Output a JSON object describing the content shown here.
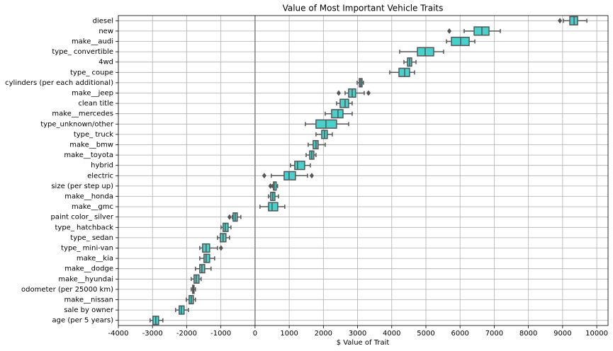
{
  "chart_data": {
    "type": "boxplot",
    "orientation": "horizontal",
    "title": "Value of Most Important Vehicle Traits",
    "x_label": "$ Value of Trait",
    "color": "#48d1cc",
    "edge_color": "#555555",
    "grid": true,
    "zero_line": true,
    "xlim": [
      -4000,
      10330
    ],
    "xticks": [
      -4000,
      -3000,
      -2000,
      -1000,
      0,
      1000,
      2000,
      3000,
      4000,
      5000,
      6000,
      7000,
      8000,
      9000,
      10000
    ],
    "categories": [
      "diesel",
      "new",
      "make__audi",
      "type_ convertible",
      "4wd",
      "type_ coupe",
      "cylinders (per each additional)",
      "make__jeep",
      "clean title",
      "make__mercedes",
      "type_unknown/other",
      "type_ truck",
      "make__bmw",
      "make__toyota",
      "hybrid",
      "electric",
      "size (per step up)",
      "make__honda",
      "make__gmc",
      "paint color_ silver",
      "type_ hatchback",
      "type_ sedan",
      "type_ mini-van",
      "make__kia",
      "make__dodge",
      "make__hyundai",
      "odometer (per 25000 km)",
      "make__nissan",
      "sale by owner",
      "age (per 5 years)"
    ],
    "whisker_low": [
      9025,
      6120,
      5602,
      4232,
      4357,
      3942,
      2988,
      2635,
      2386,
      2054,
      1473,
      1784,
      1556,
      1494,
      1037,
      477,
      508,
      394,
      145,
      -664,
      -996,
      -1100,
      -1618,
      -1618,
      -1743,
      -1867,
      -1867,
      -2012,
      -2324,
      -3071
    ],
    "q1": [
      9212,
      6411,
      5747,
      4751,
      4461,
      4212,
      3050,
      2739,
      2490,
      2241,
      1784,
      1950,
      1701,
      1598,
      1162,
      851,
      540,
      456,
      394,
      -643,
      -934,
      -1017,
      -1535,
      -1494,
      -1618,
      -1784,
      -1826,
      -1929,
      -2220,
      -2988
    ],
    "median": [
      9336,
      6639,
      6017,
      4979,
      4523,
      4378,
      3091,
      2842,
      2635,
      2427,
      2075,
      2033,
      1784,
      1660,
      1245,
      996,
      560,
      519,
      498,
      -581,
      -871,
      -934,
      -1432,
      -1432,
      -1556,
      -1722,
      -1805,
      -1867,
      -2158,
      -2905
    ],
    "q3": [
      9440,
      6846,
      6266,
      5228,
      4585,
      4523,
      3133,
      2946,
      2739,
      2573,
      2386,
      2116,
      1846,
      1722,
      1452,
      1183,
      620,
      581,
      664,
      -519,
      -788,
      -851,
      -1328,
      -1328,
      -1473,
      -1639,
      -1784,
      -1805,
      -2075,
      -2822
    ],
    "whisker_high": [
      9710,
      7178,
      6432,
      5519,
      4710,
      4668,
      3174,
      3195,
      2842,
      2842,
      2739,
      2261,
      2054,
      1784,
      1618,
      1535,
      660,
      685,
      871,
      -415,
      -705,
      -747,
      -1100,
      -1183,
      -1286,
      -1577,
      -1743,
      -1743,
      -1950,
      -2697
    ],
    "outliers": [
      [
        8921
      ],
      [
        5685
      ],
      [],
      [],
      [],
      [],
      [],
      [
        2448,
        3320
      ],
      [],
      [],
      [],
      [],
      [],
      [],
      [],
      [
        270,
        1660
      ],
      [
        450
      ],
      [],
      [],
      [
        -747
      ],
      [],
      [],
      [
        -996
      ],
      [],
      [],
      [],
      [],
      [],
      [],
      []
    ]
  }
}
